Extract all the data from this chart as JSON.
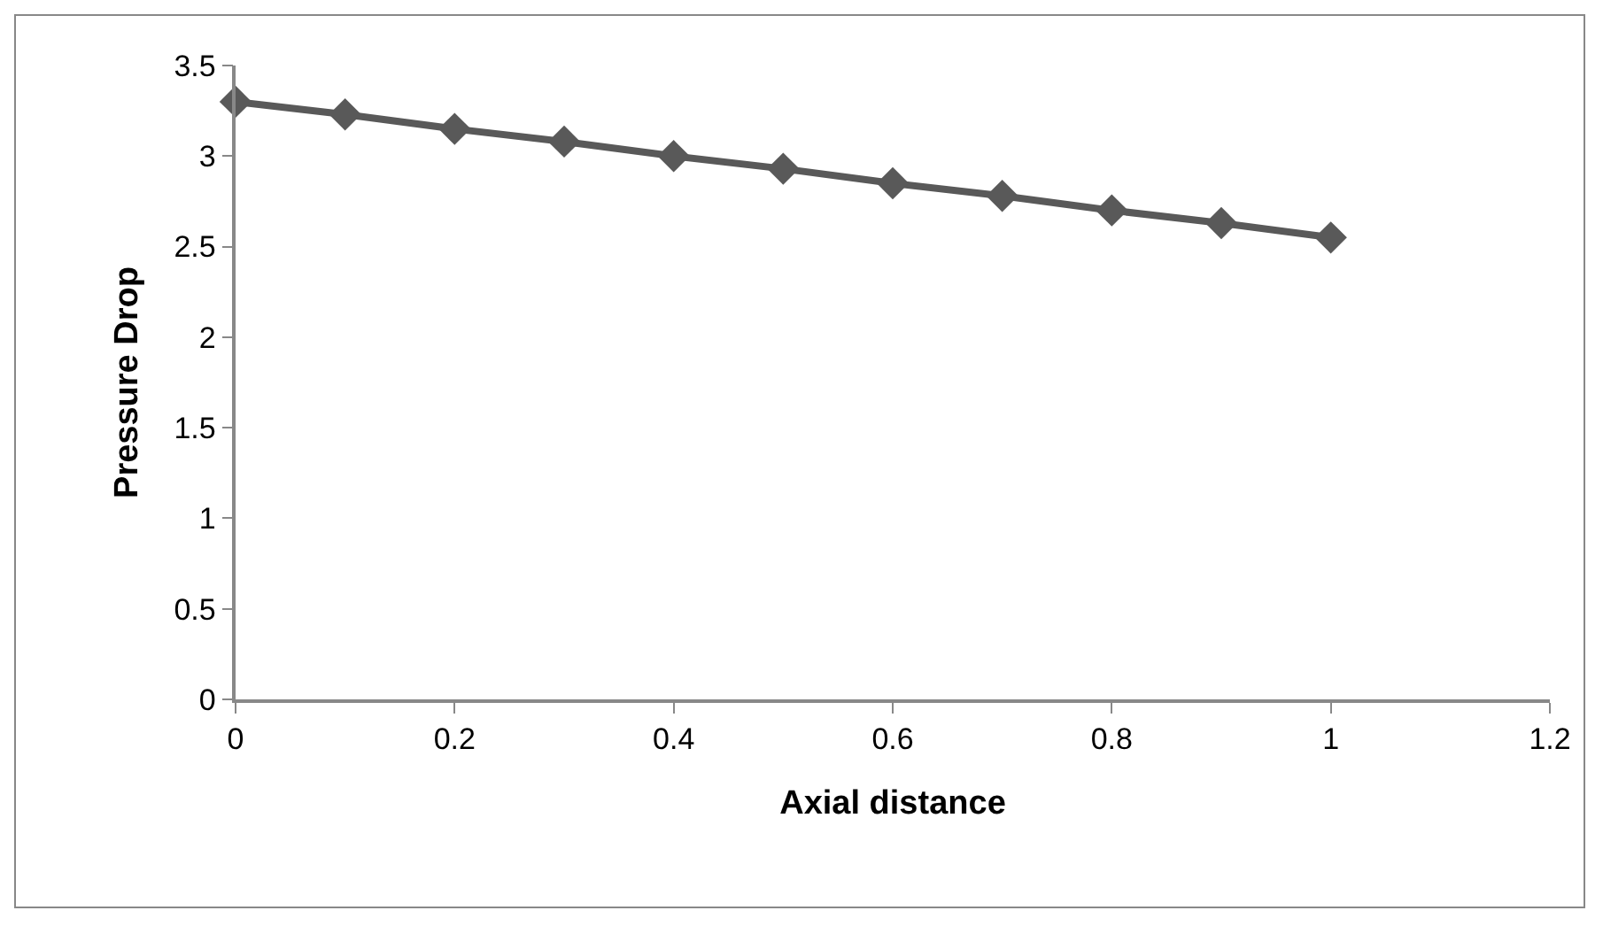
{
  "chart_data": {
    "type": "line",
    "xlabel": "Axial distance",
    "ylabel": "Pressure Drop",
    "x": [
      0,
      0.1,
      0.2,
      0.3,
      0.4,
      0.5,
      0.6,
      0.7,
      0.8,
      0.9,
      1
    ],
    "series": [
      {
        "color": "#595959",
        "values": [
          3.3,
          3.23,
          3.15,
          3.08,
          3.0,
          2.93,
          2.85,
          2.78,
          2.7,
          2.63,
          2.55
        ]
      }
    ],
    "xlim": [
      0,
      1.2
    ],
    "xticks": [
      0,
      0.2,
      0.4,
      0.6,
      0.8,
      1,
      1.2
    ],
    "ylim": [
      0,
      3.5
    ],
    "yticks": [
      0,
      0.5,
      1,
      1.5,
      2,
      2.5,
      3,
      3.5
    ],
    "grid": false,
    "marker": "diamond",
    "line_style": "solid"
  }
}
